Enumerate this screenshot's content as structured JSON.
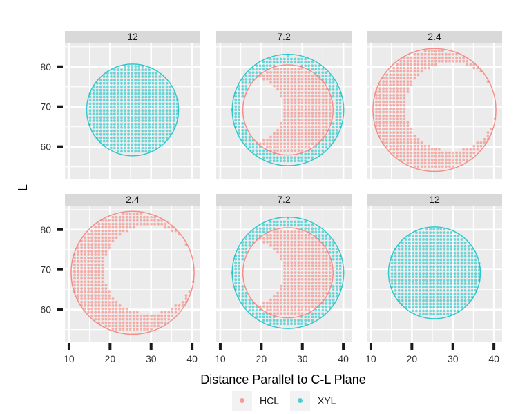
{
  "chart_data": {
    "type": "scatter",
    "xlabel": "Distance Parallel to C-L Plane",
    "ylabel": "L",
    "xlim": [
      9,
      42
    ],
    "ylim": [
      52,
      86
    ],
    "x_ticks": [
      10,
      20,
      30,
      40
    ],
    "y_ticks": [
      60,
      70,
      80
    ],
    "grid": true,
    "legend": {
      "position": "bottom",
      "entries": [
        {
          "label": "HCL",
          "color": "#F8766D"
        },
        {
          "label": "XYL",
          "color": "#00BFC4"
        }
      ]
    },
    "series_colors": {
      "HCL": "#F8766D",
      "XYL": "#00BFC4"
    },
    "panels": [
      {
        "label": "12",
        "row": 0,
        "col": 0,
        "series": [
          {
            "name": "XYL",
            "shape": "disk",
            "center": [
              25.5,
              69.2
            ],
            "outer_radius": 11.2
          }
        ]
      },
      {
        "label": "7.2",
        "row": 0,
        "col": 1,
        "series": [
          {
            "name": "XYL",
            "shape": "ring",
            "center": [
              26.5,
              69.2
            ],
            "outer_radius": 13.6,
            "inner_radius": 11.4
          },
          {
            "name": "HCL",
            "shape": "crescent",
            "center": [
              26.5,
              69.2
            ],
            "outer_radius": 11.0,
            "cut_center": [
              17.0,
              69.2
            ],
            "cut_radius": 8.4
          }
        ]
      },
      {
        "label": "2.4",
        "row": 0,
        "col": 2,
        "series": [
          {
            "name": "HCL",
            "shape": "crescent",
            "center": [
              25.5,
              69.2
            ],
            "outer_radius": 15.0,
            "cut_center": [
              29.5,
              70.0
            ],
            "cut_radius": 11.0
          }
        ]
      },
      {
        "label": "2.4",
        "row": 1,
        "col": 0,
        "series": [
          {
            "name": "HCL",
            "shape": "crescent",
            "center": [
              25.5,
              69.2
            ],
            "outer_radius": 15.0,
            "cut_center": [
              29.5,
              70.0
            ],
            "cut_radius": 11.0
          }
        ]
      },
      {
        "label": "7.2",
        "row": 1,
        "col": 1,
        "series": [
          {
            "name": "XYL",
            "shape": "ring",
            "center": [
              26.5,
              69.2
            ],
            "outer_radius": 13.6,
            "inner_radius": 11.4
          },
          {
            "name": "HCL",
            "shape": "crescent",
            "center": [
              26.5,
              69.2
            ],
            "outer_radius": 11.0,
            "cut_center": [
              17.0,
              69.2
            ],
            "cut_radius": 8.4
          }
        ]
      },
      {
        "label": "12",
        "row": 1,
        "col": 2,
        "series": [
          {
            "name": "XYL",
            "shape": "disk",
            "center": [
              25.5,
              69.2
            ],
            "outer_radius": 11.2
          }
        ]
      }
    ]
  }
}
